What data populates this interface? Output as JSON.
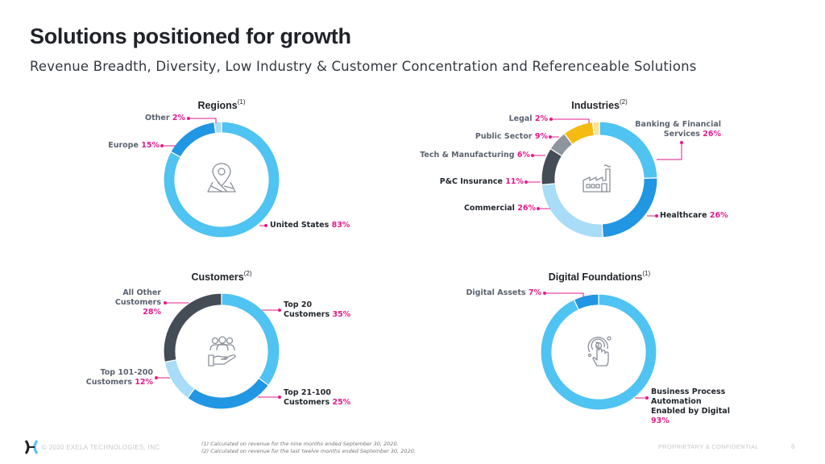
{
  "header": {
    "title": "Solutions positioned for growth",
    "subtitle": "Revenue Breadth, Diversity, Low Industry & Customer Concentration and Referenceable Solutions"
  },
  "colors": {
    "accent_pink": "#e31b8b",
    "light_blue": "#4fc3f1",
    "mid_blue": "#2196e3",
    "pale_blue": "#a8dcf7",
    "dark_slate": "#444c55",
    "gray": "#8d959d",
    "gold": "#f5bb12",
    "pale_gold": "#fde294"
  },
  "chart_data": [
    {
      "type": "pie",
      "title": "Regions",
      "footnote_ref": "(1)",
      "center_icon": "map-pin-icon",
      "slices": [
        {
          "label": "United States",
          "value": 83,
          "display": "83%",
          "color": "#4fc3f1"
        },
        {
          "label": "Europe",
          "value": 15,
          "display": "15%",
          "color": "#2196e3"
        },
        {
          "label": "Other",
          "value": 2,
          "display": "2%",
          "color": "#a8dcf7"
        }
      ]
    },
    {
      "type": "pie",
      "title": "Industries",
      "footnote_ref": "(2)",
      "center_icon": "factory-icon",
      "slices": [
        {
          "label": "Banking & Financial Services",
          "value": 26,
          "display": "26%",
          "color": "#4fc3f1"
        },
        {
          "label": "Healthcare",
          "value": 26,
          "display": "26%",
          "color": "#2196e3"
        },
        {
          "label": "Commercial",
          "value": 26,
          "display": "26%",
          "color": "#a8dcf7"
        },
        {
          "label": "P&C Insurance",
          "value": 11,
          "display": "11%",
          "color": "#444c55"
        },
        {
          "label": "Tech & Manufacturing",
          "value": 6,
          "display": "6%",
          "color": "#8d959d"
        },
        {
          "label": "Public Sector",
          "value": 9,
          "display": "9%",
          "color": "#f5bb12"
        },
        {
          "label": "Legal",
          "value": 2,
          "display": "2%",
          "color": "#fde294"
        }
      ]
    },
    {
      "type": "pie",
      "title": "Customers",
      "footnote_ref": "(2)",
      "center_icon": "customers-hand-icon",
      "slices": [
        {
          "label": "Top 20 Customers",
          "value": 35,
          "display": "35%",
          "color": "#4fc3f1"
        },
        {
          "label": "Top 21-100 Customers",
          "value": 25,
          "display": "25%",
          "color": "#2196e3"
        },
        {
          "label": "Top 101-200 Customers",
          "value": 12,
          "display": "12%",
          "color": "#a8dcf7"
        },
        {
          "label": "All Other Customers",
          "value": 28,
          "display": "28%",
          "color": "#444c55"
        }
      ]
    },
    {
      "type": "pie",
      "title": "Digital Foundations",
      "footnote_ref": "(1)",
      "center_icon": "touch-target-icon",
      "slices": [
        {
          "label": "Business Process Automation Enabled by Digital",
          "value": 93,
          "display": "93%",
          "color": "#4fc3f1"
        },
        {
          "label": "Digital Assets",
          "value": 7,
          "display": "7%",
          "color": "#2196e3"
        }
      ]
    }
  ],
  "labels": {
    "regions": {
      "other": {
        "name": "Other",
        "pct": "2%"
      },
      "europe": {
        "name": "Europe",
        "pct": "15%"
      },
      "us": {
        "name": "United States",
        "pct": "83%"
      }
    },
    "industries": {
      "legal": {
        "name": "Legal",
        "pct": "2%"
      },
      "public": {
        "name": "Public Sector",
        "pct": "9%"
      },
      "tech": {
        "name": "Tech & Manufacturing",
        "pct": "6%"
      },
      "pc": {
        "name": "P&C Insurance",
        "pct": "11%"
      },
      "commercial": {
        "name": "Commercial",
        "pct": "26%"
      },
      "banking_l1": "Banking & Financial",
      "banking_l2": "Services",
      "banking_pct": "26%",
      "healthcare": {
        "name": "Healthcare",
        "pct": "26%"
      }
    },
    "customers": {
      "other_l1": "All Other",
      "other_l2": "Customers",
      "other_pct": "28%",
      "top20_l1": "Top 20",
      "top20_l2": "Customers",
      "top20_pct": "35%",
      "top21_l1": "Top 21-100",
      "top21_l2": "Customers",
      "top21_pct": "25%",
      "top101_l1": "Top 101-200",
      "top101_l2": "Customers",
      "top101_pct": "12%"
    },
    "digital": {
      "assets": {
        "name": "Digital Assets",
        "pct": "7%"
      },
      "bpa_l1": "Business Process",
      "bpa_l2": "Automation",
      "bpa_l3": "Enabled by Digital",
      "bpa_pct": "93%"
    }
  },
  "footer": {
    "copyright": "© 2020 EXELA TECHNOLOGIES, INC",
    "footnote_1": "(1)  Calculated on revenue for the nine months ended September 30, 2020.",
    "footnote_2": "(2)  Calculated on revenue for the last twelve months ended September 30, 2020.",
    "confidential": "PROPRIETARY & CONFIDENTIAL",
    "page_number": "6"
  }
}
